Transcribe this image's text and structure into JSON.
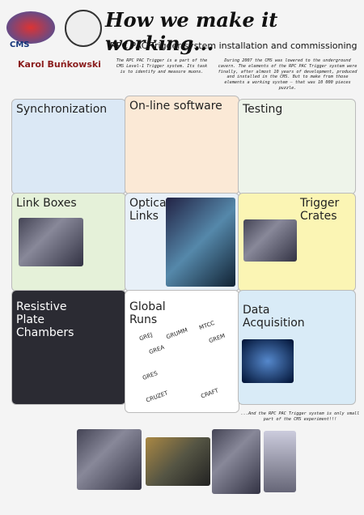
{
  "header": {
    "title": "How we make it working...",
    "subtitle": "RPC PAC Trigger system installation and commissioning",
    "author": "Karol Buńkowski",
    "logo": "CMS",
    "intro_left": "The RPC PAC Trigger is a part of the CMS Level-1 Trigger system. Its task is to identify and measure muons.",
    "intro_right": "During 2007 the CMS was lowered to the underground cavern. The elements of the RPC PAC Trigger system were finally, after almost 10 years of development, produced and installed in the CMS. But to make from those elements a working system – that was 10 000 pieces puzzle."
  },
  "pieces": [
    {
      "title": "Synchronization"
    },
    {
      "title": "On-line software"
    },
    {
      "title": "Testing"
    },
    {
      "title": "Link Boxes"
    },
    {
      "title": "Optical Links"
    },
    {
      "title": "Trigger Crates"
    },
    {
      "title": "Resistive Plate Chambers"
    },
    {
      "title": "Global Runs"
    },
    {
      "title": "Data Acquisition"
    }
  ],
  "global_runs": [
    "GRUMM",
    "MTCC",
    "GREM",
    "GREJ",
    "GREA",
    "GRES",
    "CRUZET",
    "CRAFT"
  ],
  "footer": "...And the RPC PAC Trigger system is only small part of the CMS experiment!!!"
}
